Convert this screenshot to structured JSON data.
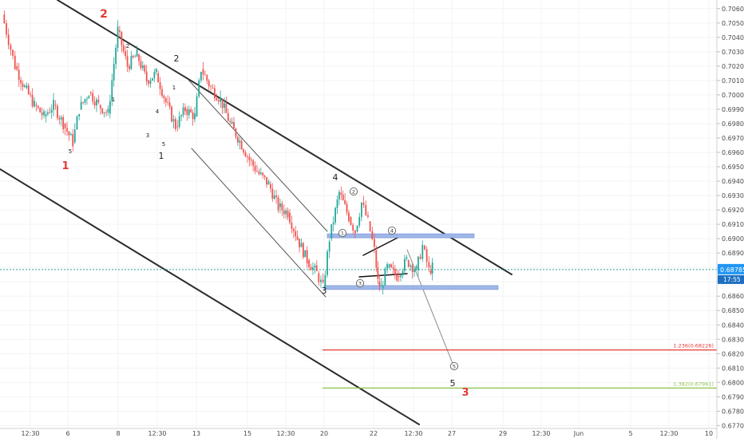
{
  "chart_data": {
    "type": "candlestick",
    "y_axis": {
      "ylim": [
        0.6768,
        0.7066
      ],
      "ticks": [
        "0.70600",
        "0.70500",
        "0.70400",
        "0.70300",
        "0.70200",
        "0.70100",
        "0.70000",
        "0.69900",
        "0.69800",
        "0.69700",
        "0.69600",
        "0.69500",
        "0.69400",
        "0.69300",
        "0.69200",
        "0.69100",
        "0.69000",
        "0.68900",
        "0.68800",
        "0.68700",
        "0.68600",
        "0.68500",
        "0.68400",
        "0.68300",
        "0.68200",
        "0.68100",
        "0.68000",
        "0.67900",
        "0.67800",
        "0.67700"
      ]
    },
    "x_axis": {
      "ticks": [
        "12:30",
        "6",
        "8",
        "12:30",
        "13",
        "15",
        "12:30",
        "20",
        "22",
        "12:30",
        "27",
        "29",
        "12:30",
        "Jun",
        "5",
        "12:30",
        "10"
      ]
    },
    "current_price": {
      "label": "0.68785",
      "value": 0.68785,
      "timer": "17:55",
      "color": "#2196f3"
    },
    "fib_levels": [
      {
        "label": "1.236(0.68226)",
        "value": 0.68226,
        "color": "#e53935"
      },
      {
        "label": "1.382(0.67961)",
        "value": 0.67961,
        "color": "#8bc34a"
      }
    ],
    "zones": [
      {
        "value": 0.6902,
        "color": "#9fb7e8"
      },
      {
        "value": 0.6866,
        "color": "#9fb7e8"
      }
    ],
    "price_path": [
      [
        0,
        0.7056
      ],
      [
        0.04,
        0.702
      ],
      [
        0.07,
        0.7005
      ],
      [
        0.1,
        0.6993
      ],
      [
        0.13,
        0.6985
      ],
      [
        0.16,
        0.6993
      ],
      [
        0.19,
        0.698
      ],
      [
        0.22,
        0.6967
      ],
      [
        0.24,
        0.699
      ],
      [
        0.27,
        0.7002
      ],
      [
        0.3,
        0.6993
      ],
      [
        0.33,
        0.6987
      ],
      [
        0.36,
        0.7045
      ],
      [
        0.39,
        0.702
      ],
      [
        0.42,
        0.7028
      ],
      [
        0.45,
        0.701
      ],
      [
        0.48,
        0.7015
      ],
      [
        0.51,
        0.6995
      ],
      [
        0.54,
        0.6978
      ],
      [
        0.57,
        0.699
      ],
      [
        0.6,
        0.6985
      ],
      [
        0.62,
        0.7018
      ],
      [
        0.65,
        0.7005
      ],
      [
        0.68,
        0.6997
      ],
      [
        0.71,
        0.698
      ],
      [
        0.74,
        0.6968
      ],
      [
        0.77,
        0.6955
      ],
      [
        0.8,
        0.6945
      ],
      [
        0.83,
        0.6938
      ],
      [
        0.86,
        0.6922
      ],
      [
        0.89,
        0.6918
      ],
      [
        0.92,
        0.69
      ],
      [
        0.95,
        0.6885
      ],
      [
        0.98,
        0.6876
      ],
      [
        1.0,
        0.6866
      ],
      [
        1.02,
        0.69
      ],
      [
        1.05,
        0.6932
      ],
      [
        1.08,
        0.6915
      ],
      [
        1.1,
        0.6905
      ],
      [
        1.12,
        0.6925
      ],
      [
        1.14,
        0.6912
      ],
      [
        1.16,
        0.6892
      ],
      [
        1.17,
        0.687
      ],
      [
        1.18,
        0.6866
      ],
      [
        1.2,
        0.688
      ],
      [
        1.23,
        0.6874
      ],
      [
        1.26,
        0.6885
      ],
      [
        1.29,
        0.6878
      ],
      [
        1.31,
        0.6895
      ],
      [
        1.33,
        0.6878
      ],
      [
        1.34,
        0.688
      ]
    ],
    "wave_labels": [
      {
        "text": "2",
        "color": "#e53935",
        "bold": true
      },
      {
        "text": "1",
        "color": "#e53935",
        "bold": true
      },
      {
        "text": "3",
        "color": "#e53935",
        "bold": true
      },
      {
        "text": "2",
        "color": "#222222"
      },
      {
        "text": "1",
        "color": "#222222"
      },
      {
        "text": "3",
        "color": "#222222"
      },
      {
        "text": "4",
        "color": "#222222"
      },
      {
        "text": "5",
        "color": "#222222"
      },
      {
        "text": "2",
        "small": true
      },
      {
        "text": "1",
        "small": true
      },
      {
        "text": "4",
        "small": true
      },
      {
        "text": "3",
        "small": true
      },
      {
        "text": "5",
        "small": true
      },
      {
        "text": "1",
        "small": true
      },
      {
        "text": "5",
        "small": true
      }
    ],
    "circled_labels": [
      "2",
      "1",
      "3",
      "4",
      "5"
    ]
  }
}
